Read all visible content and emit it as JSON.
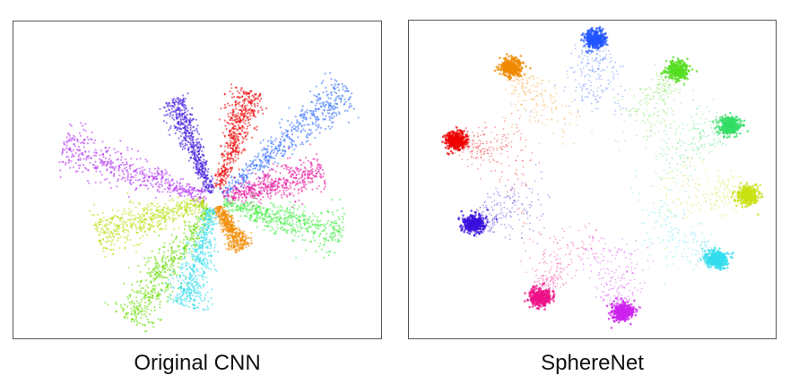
{
  "chart_data": [
    {
      "type": "scatter",
      "title": "Original CNN",
      "xlabel": "",
      "ylabel": "",
      "grid": false,
      "legend": "none",
      "xlim": [
        -1,
        1
      ],
      "ylim": [
        -1,
        1
      ],
      "series": [
        {
          "color": "#2f6bff",
          "angle_deg": 40,
          "r_start": 0.06,
          "r_end": 1.08,
          "width": 0.05
        },
        {
          "color": "#ee0000",
          "angle_deg": 72,
          "r_start": 0.08,
          "r_end": 0.72,
          "width": 0.045
        },
        {
          "color": "#3a10dd",
          "angle_deg": 112,
          "r_start": 0.05,
          "r_end": 0.68,
          "width": 0.035
        },
        {
          "color": "#b030f0",
          "angle_deg": 161,
          "r_start": 0.05,
          "r_end": 1.0,
          "width": 0.06
        },
        {
          "color": "#e81aa0",
          "angle_deg": 15,
          "r_start": 0.06,
          "r_end": 0.7,
          "width": 0.055
        },
        {
          "color": "#b8e010",
          "angle_deg": 196,
          "r_start": 0.05,
          "r_end": 0.76,
          "width": 0.055
        },
        {
          "color": "#44ee44",
          "angle_deg": 345,
          "r_start": 0.06,
          "r_end": 0.82,
          "width": 0.055
        },
        {
          "color": "#66dd00",
          "angle_deg": 235,
          "r_start": 0.06,
          "r_end": 0.92,
          "width": 0.065
        },
        {
          "color": "#33ddee",
          "angle_deg": 255,
          "r_start": 0.05,
          "r_end": 0.68,
          "width": 0.05
        },
        {
          "color": "#f08a00",
          "angle_deg": 300,
          "r_start": 0.04,
          "r_end": 0.35,
          "width": 0.03
        }
      ]
    },
    {
      "type": "scatter",
      "title": "SphereNet",
      "xlabel": "",
      "ylabel": "",
      "grid": false,
      "legend": "none",
      "xlim": [
        -1,
        1
      ],
      "ylim": [
        -1,
        1
      ],
      "series": [
        {
          "color": "#2255ff",
          "x": 0.01,
          "y": 0.95
        },
        {
          "color": "#55dd22",
          "x": 0.52,
          "y": 0.74
        },
        {
          "color": "#33dd66",
          "x": 0.84,
          "y": 0.36
        },
        {
          "color": "#c8e010",
          "x": 0.95,
          "y": -0.11
        },
        {
          "color": "#33ddee",
          "x": 0.76,
          "y": -0.54
        },
        {
          "color": "#cc22ee",
          "x": 0.18,
          "y": -0.9
        },
        {
          "color": "#ee1188",
          "x": -0.32,
          "y": -0.8
        },
        {
          "color": "#3a10dd",
          "x": -0.73,
          "y": -0.3
        },
        {
          "color": "#ee0000",
          "x": -0.84,
          "y": 0.26
        },
        {
          "color": "#f08a00",
          "x": -0.5,
          "y": 0.76
        }
      ]
    }
  ],
  "captions": {
    "left": "Original CNN",
    "right": "SphereNet"
  }
}
